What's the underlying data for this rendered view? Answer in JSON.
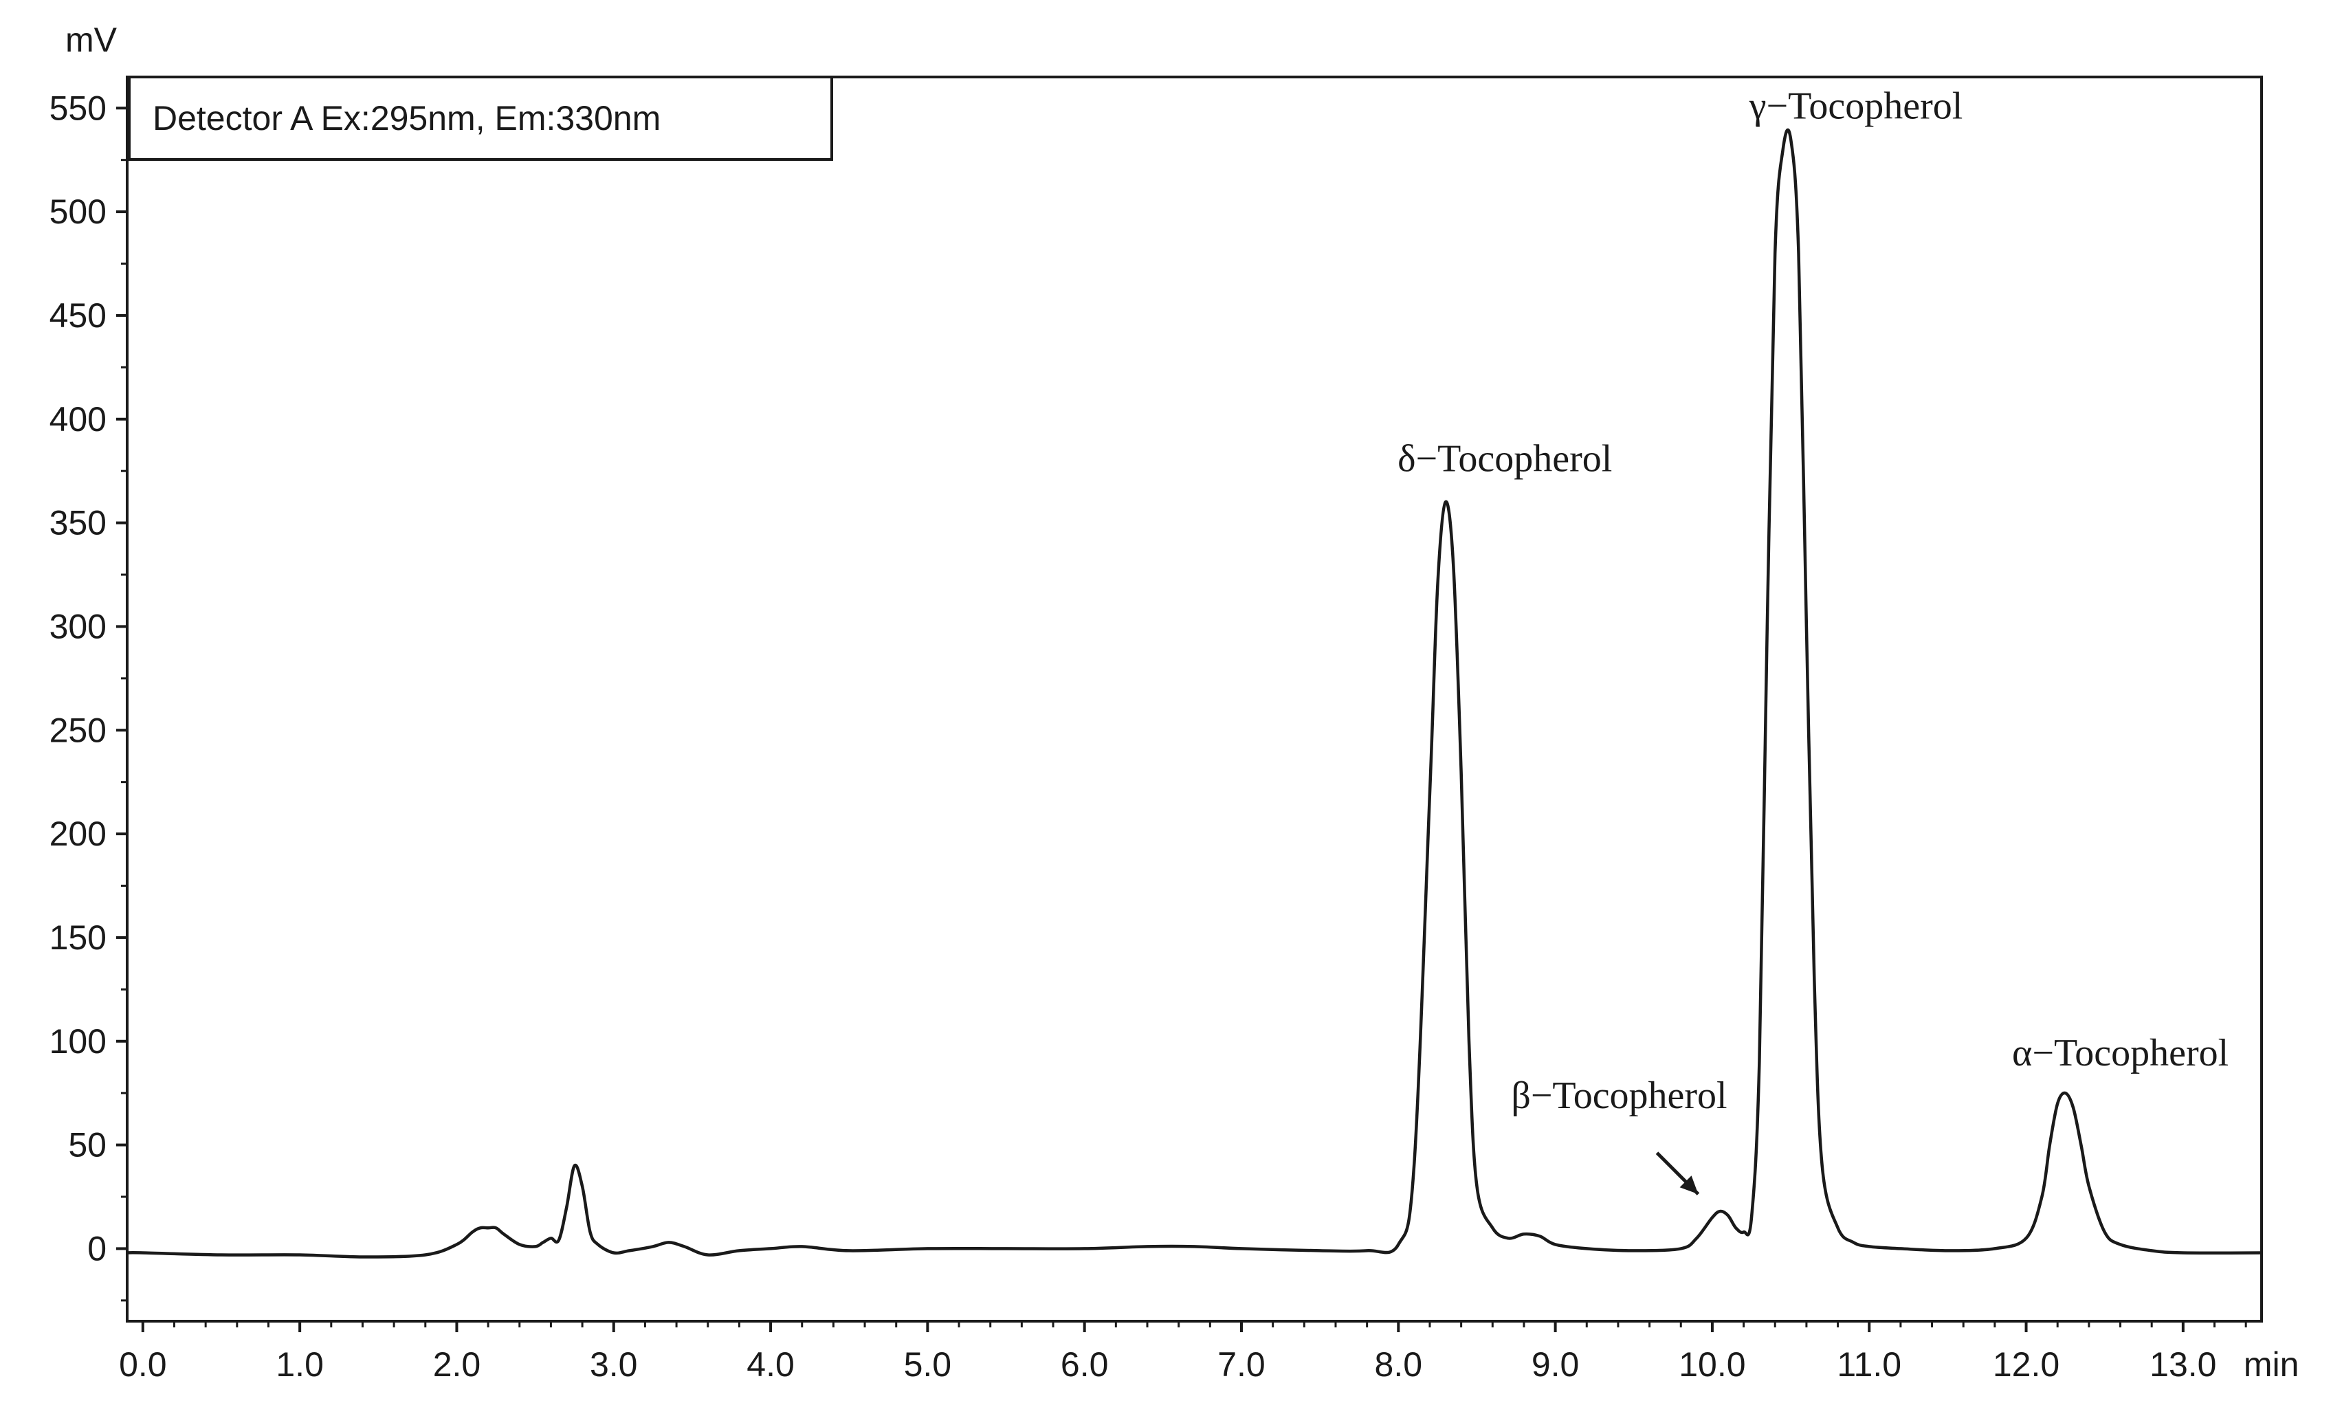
{
  "chart_data": {
    "type": "line",
    "title": "",
    "xlabel": "",
    "ylabel": "",
    "x_unit": "min",
    "y_unit": "mV",
    "xlim": [
      -0.1,
      13.5
    ],
    "ylim": [
      -35,
      565
    ],
    "x_ticks": [
      0.0,
      1.0,
      2.0,
      3.0,
      4.0,
      5.0,
      6.0,
      7.0,
      8.0,
      9.0,
      10.0,
      11.0,
      12.0,
      13.0
    ],
    "x_tick_labels": [
      "0.0",
      "1.0",
      "2.0",
      "3.0",
      "4.0",
      "5.0",
      "6.0",
      "7.0",
      "8.0",
      "9.0",
      "10.0",
      "11.0",
      "12.0",
      "13.0"
    ],
    "y_ticks": [
      0,
      50,
      100,
      150,
      200,
      250,
      300,
      350,
      400,
      450,
      500,
      550
    ],
    "y_tick_labels": [
      "0",
      "50",
      "100",
      "150",
      "200",
      "250",
      "300",
      "350",
      "400",
      "450",
      "500",
      "550"
    ],
    "grid": false,
    "legend_box": "Detector A Ex:295nm, Em:330nm",
    "line_color": "#1a1a1a",
    "series": [
      {
        "name": "",
        "x": [
          -0.1,
          0.0,
          0.5,
          1.0,
          1.4,
          1.8,
          2.0,
          2.1,
          2.15,
          2.2,
          2.25,
          2.3,
          2.4,
          2.5,
          2.55,
          2.6,
          2.65,
          2.7,
          2.75,
          2.8,
          2.85,
          2.9,
          3.0,
          3.1,
          3.25,
          3.35,
          3.45,
          3.6,
          3.8,
          4.0,
          4.2,
          4.5,
          5.0,
          5.5,
          6.0,
          6.4,
          6.7,
          7.0,
          7.5,
          7.8,
          8.0,
          8.1,
          8.2,
          8.25,
          8.3,
          8.35,
          8.4,
          8.45,
          8.5,
          8.6,
          8.7,
          8.8,
          8.9,
          9.0,
          9.2,
          9.5,
          9.8,
          9.9,
          10.0,
          10.05,
          10.1,
          10.15,
          10.2,
          10.25,
          10.3,
          10.35,
          10.4,
          10.45,
          10.5,
          10.55,
          10.6,
          10.65,
          10.7,
          10.8,
          10.9,
          11.0,
          11.2,
          11.5,
          11.8,
          12.0,
          12.1,
          12.15,
          12.2,
          12.25,
          12.3,
          12.35,
          12.4,
          12.5,
          12.6,
          12.8,
          13.0,
          13.5
        ],
        "y": [
          -2,
          -2,
          -3,
          -3,
          -4,
          -3,
          2,
          8,
          10,
          10,
          10,
          7,
          2,
          1,
          3,
          5,
          4,
          20,
          40,
          30,
          8,
          2,
          -2,
          -1,
          1,
          3,
          1,
          -3,
          -1,
          0,
          1,
          -1,
          0,
          0,
          0,
          1,
          1,
          0,
          -1,
          -1,
          2,
          40,
          220,
          320,
          360,
          330,
          230,
          100,
          30,
          10,
          5,
          7,
          6,
          2,
          0,
          -1,
          0,
          5,
          15,
          18,
          16,
          10,
          8,
          15,
          90,
          300,
          480,
          530,
          535,
          480,
          300,
          130,
          40,
          10,
          3,
          1,
          0,
          -1,
          0,
          5,
          25,
          50,
          70,
          75,
          68,
          50,
          30,
          8,
          2,
          -1,
          -2,
          -2
        ]
      }
    ],
    "annotations": [
      {
        "text": "δ−Tocopherol",
        "x": 8.35,
        "y": 360
      },
      {
        "text": "β−Tocopherol",
        "x": 10.02,
        "y": 18,
        "arrow": true
      },
      {
        "text": "γ−Tocopherol",
        "x": 10.5,
        "y": 535
      },
      {
        "text": "α−Tocopherol",
        "x": 12.25,
        "y": 75
      }
    ]
  }
}
